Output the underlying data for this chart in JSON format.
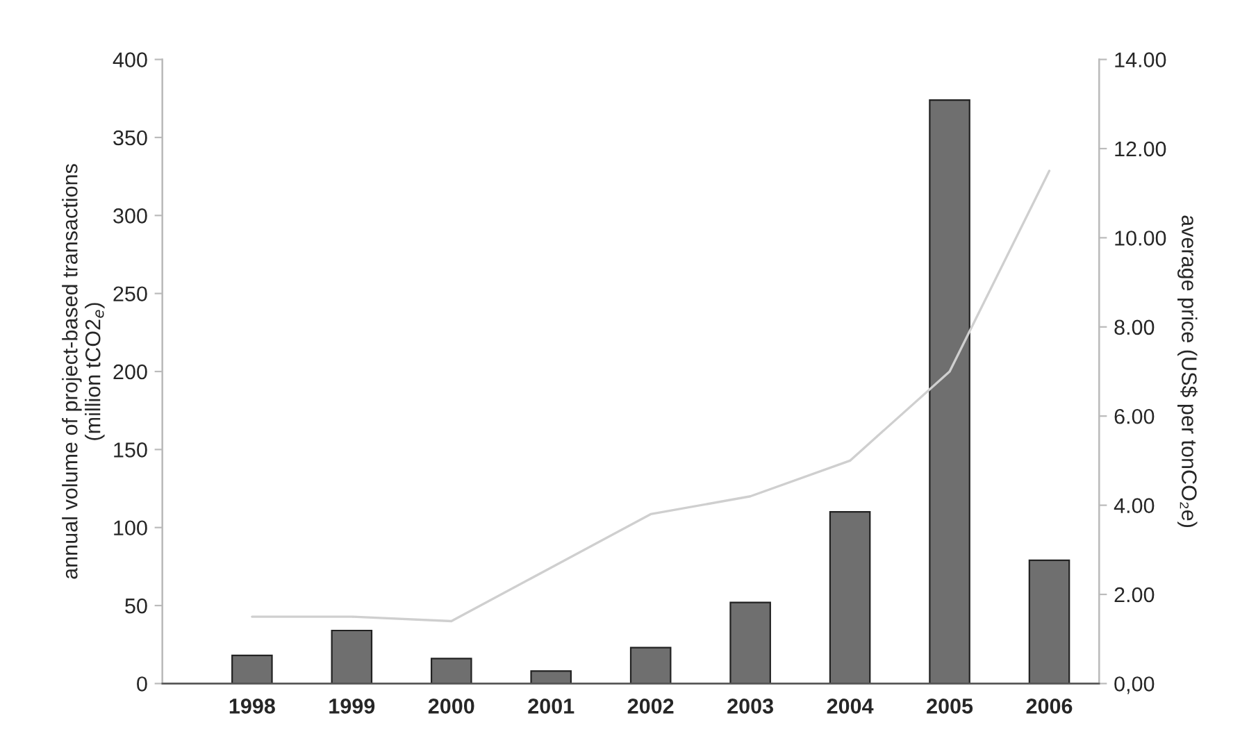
{
  "chart_data": {
    "type": "bar",
    "categories": [
      "1998",
      "1999",
      "2000",
      "2001",
      "2002",
      "2003",
      "2004",
      "2005",
      "2006"
    ],
    "ylabel": "annual volume of project-based transactions\n(million tCO2$_{e}$)",
    "y2label": "average price (US$ per tonCO₂e)",
    "ylim": [
      0,
      400
    ],
    "yticks": [
      0,
      50,
      100,
      150,
      200,
      250,
      300,
      350,
      400
    ],
    "y2lim": [
      0,
      14
    ],
    "y2ticks": [
      {
        "value": 0,
        "label": "0,00"
      },
      {
        "value": 2,
        "label": "2.00"
      },
      {
        "value": 4,
        "label": "4.00"
      },
      {
        "value": 6,
        "label": "6.00"
      },
      {
        "value": 8,
        "label": "8.00"
      },
      {
        "value": 10,
        "label": "10.00"
      },
      {
        "value": 12,
        "label": "12.00"
      },
      {
        "value": 14,
        "label": "14.00"
      }
    ],
    "grid": false,
    "legend": false,
    "series": [
      {
        "color": "#6f6f6f",
        "values": [
          18,
          34,
          16,
          8,
          23,
          52,
          110,
          374,
          79
        ]
      },
      {
        "type": "line",
        "axis": "y2",
        "color": "#cfcfcf",
        "values": [
          1.5,
          1.5,
          1.4,
          2.6,
          3.8,
          4.2,
          5.0,
          7.0,
          11.5
        ]
      }
    ]
  }
}
